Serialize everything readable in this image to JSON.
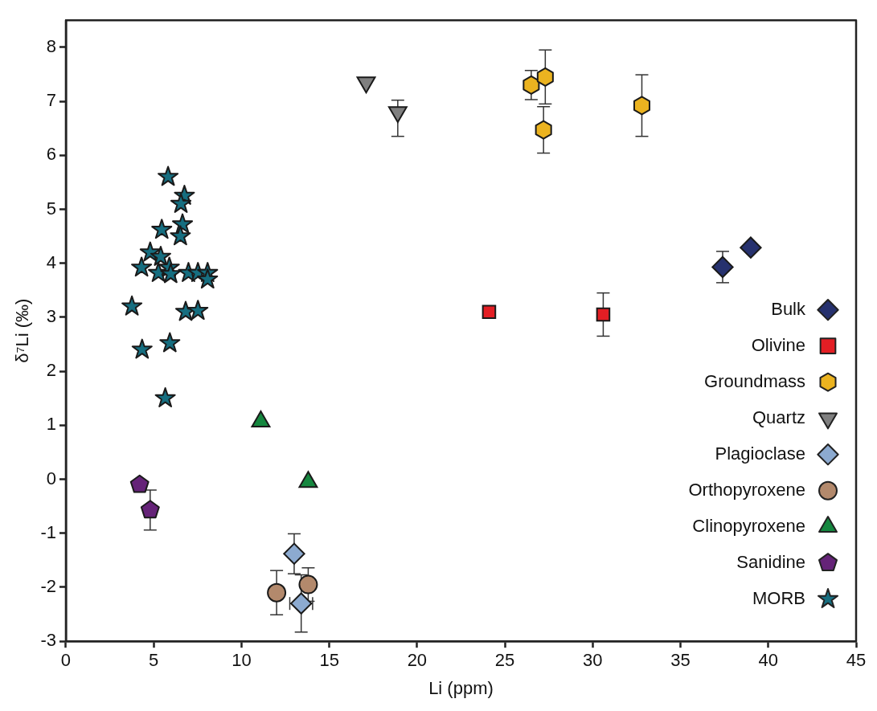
{
  "chart_data": {
    "type": "scatter",
    "xlabel": "Li (ppm)",
    "ylabel": "δ⁷Li (‰)",
    "xlim": [
      0,
      45
    ],
    "xticks": [
      0,
      5,
      10,
      15,
      20,
      25,
      30,
      35,
      40,
      45
    ],
    "ylim": [
      -3,
      8.5
    ],
    "yticks": [
      -3,
      -2,
      -1,
      0,
      1,
      2,
      3,
      4,
      5,
      6,
      7,
      8
    ],
    "grid": false,
    "legend": "bottom right",
    "series": [
      {
        "name": "Bulk",
        "color": "#26316e",
        "marker": "diamond",
        "x": [
          37.4,
          39.0
        ],
        "values": [
          3.93,
          4.29
        ],
        "errors": [
          0.29,
          null
        ]
      },
      {
        "name": "Olivine",
        "color": "#e31e24",
        "marker": "square",
        "x": [
          24.1,
          30.6
        ],
        "values": [
          3.1,
          3.05
        ],
        "errors": [
          null,
          0.4
        ]
      },
      {
        "name": "Groundmass",
        "color": "#ebb320",
        "x": [
          26.5,
          27.3,
          27.2,
          32.8
        ],
        "values": [
          7.3,
          7.45,
          6.47,
          6.92
        ],
        "errors": [
          0.27,
          0.5,
          0.43,
          0.57
        ]
      },
      {
        "name": "Quartz",
        "color": "#808080",
        "marker": "triangle-down",
        "x": [
          17.1,
          18.9
        ],
        "values": [
          7.35,
          6.8
        ],
        "errors": [
          null,
          [
            6.35,
            7.02
          ]
        ]
      },
      {
        "name": "Plagioclase",
        "color": "#8caad0",
        "marker": "diamond",
        "x": [
          13.0,
          13.4
        ],
        "values": [
          -1.38,
          -2.3
        ],
        "errors": [
          0.37,
          0.53
        ],
        "xerrors": [
          null,
          0.65
        ]
      },
      {
        "name": "Orthopyroxene",
        "color": "#b3896c",
        "marker": "circle",
        "x": [
          12.0,
          13.8
        ],
        "values": [
          -2.1,
          -1.95
        ],
        "errors": [
          0.41,
          0.31
        ]
      },
      {
        "name": "Clinopyroxene",
        "color": "#15873f",
        "marker": "triangle",
        "x": [
          11.1,
          13.8
        ],
        "values": [
          1.07,
          -0.05
        ]
      },
      {
        "name": "Sanidine",
        "color": "#652378",
        "x": [
          4.2,
          4.8
        ],
        "values": [
          -0.1,
          -0.57
        ],
        "errors": [
          null,
          0.37
        ]
      },
      {
        "name": "MORB",
        "color": "#166e80",
        "marker": "star",
        "x": [
          5.82,
          6.75,
          6.55,
          5.46,
          6.64,
          6.52,
          4.8,
          5.4,
          4.31,
          5.27,
          5.89,
          5.97,
          6.98,
          7.52,
          8.07,
          8.07,
          3.76,
          6.82,
          7.52,
          4.34,
          5.92,
          5.66
        ],
        "values": [
          5.6,
          5.25,
          5.1,
          4.62,
          4.72,
          4.5,
          4.2,
          4.12,
          3.92,
          3.82,
          3.92,
          3.8,
          3.82,
          3.82,
          3.82,
          3.7,
          3.2,
          3.1,
          3.12,
          2.4,
          2.52,
          1.5
        ]
      }
    ]
  }
}
